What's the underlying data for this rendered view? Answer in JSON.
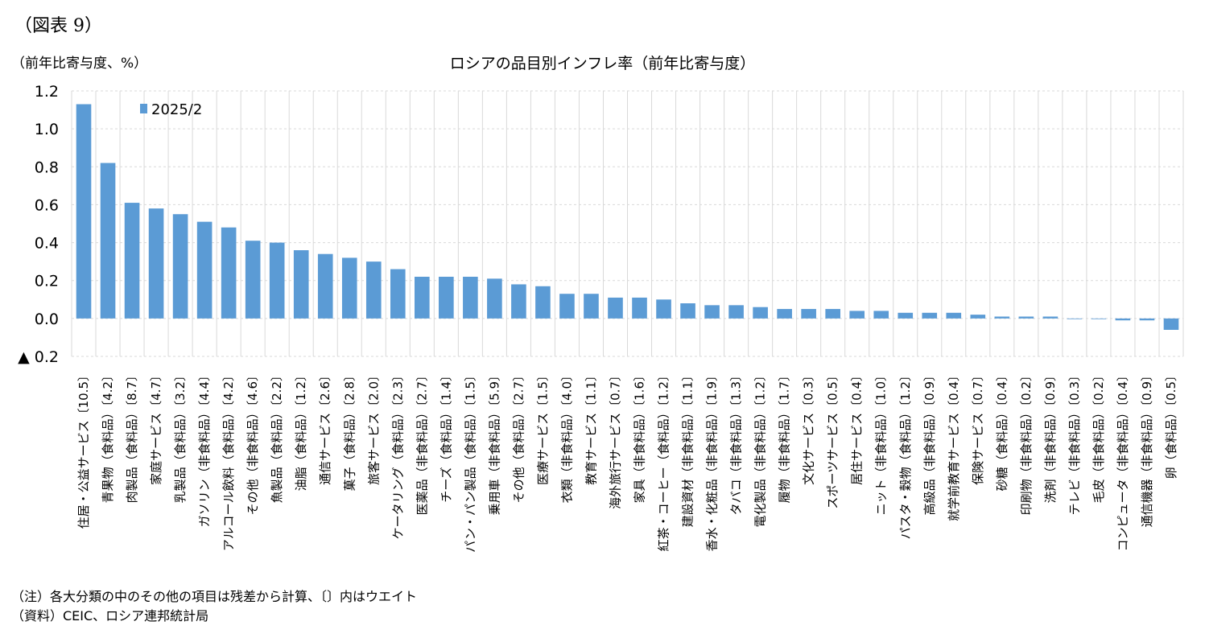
{
  "figure_label": "（図表 9）",
  "unit_label": "（前年比寄与度、%）",
  "notes": [
    "（注）各大分類の中のその他の項目は残差から計算、〔〕内はウエイト",
    "（資料）CEIC、ロシア連邦統計局"
  ],
  "colors": {
    "bar": "#5b9bd5",
    "grid": "#d9d9d9"
  },
  "chart_data": {
    "type": "bar",
    "title": "ロシアの品目別インフレ率（前年比寄与度）",
    "ylim": [
      -0.2,
      1.2
    ],
    "y_ticks": [
      1.2,
      1.0,
      0.8,
      0.6,
      0.4,
      0.2,
      0.0,
      -0.2
    ],
    "y_tick_labels": [
      "1.2",
      "1.0",
      "0.8",
      "0.6",
      "0.4",
      "0.2",
      "0.0",
      "▲ 0.2"
    ],
    "grid": true,
    "legend_position": "top-left",
    "categories": [
      "住居・公益サービス〔10.5〕",
      "青果物（食料品）〔4.2〕",
      "肉製品（食料品）〔8.7〕",
      "家庭サービス〔4.7〕",
      "乳製品（食料品）〔3.2〕",
      "ガソリン（非食料品）〔4.4〕",
      "アルコール飲料（食料品）〔4.2〕",
      "その他（非食料品）〔4.6〕",
      "魚製品（食料品）〔2.2〕",
      "油脂（食料品）〔1.2〕",
      "通信サービス〔2.6〕",
      "菓子（食料品）〔2.8〕",
      "旅客サービス〔2.0〕",
      "ケータリング（食料品）〔2.3〕",
      "医薬品（非食料品）〔2.7〕",
      "チーズ（食料品）〔1.4〕",
      "パン・パン製品（食料品）〔1.5〕",
      "乗用車（非食料品）〔5.9〕",
      "その他（食料品）〔2.7〕",
      "医療サービス〔1.5〕",
      "衣類（非食料品）〔4.0〕",
      "教育サービス〔1.1〕",
      "海外旅行サービス〔0.7〕",
      "家具（非食料品）〔1.6〕",
      "紅茶・コーヒー（食料品）〔1.2〕",
      "建設資材（非食料品）〔1.1〕",
      "香水・化粧品（非食料品）〔1.9〕",
      "タバコ（非食料品）〔1.3〕",
      "電化製品（非食料品）〔1.2〕",
      "履物（非食料品）〔1.7〕",
      "文化サービス〔0.3〕",
      "スポーツサービス〔0.5〕",
      "居住サービス〔0.4〕",
      "ニット（非食料品）〔1.0〕",
      "パスタ・穀物（食料品）〔1.2〕",
      "高級品（非食料品）〔0.9〕",
      "就学前教育サービス〔0.4〕",
      "保険サービス〔0.7〕",
      "砂糖（食料品）〔0.4〕",
      "印刷物（非食料品）〔0.2〕",
      "洗剤（非食料品）〔0.9〕",
      "テレビ（非食料品）〔0.3〕",
      "毛皮（非食料品）〔0.2〕",
      "コンピュータ（非食料品）〔0.4〕",
      "通信機器（非食料品）〔0.9〕",
      "卵（食料品）〔0.5〕"
    ],
    "series": [
      {
        "name": "2025/2",
        "values": [
          1.13,
          0.82,
          0.61,
          0.58,
          0.55,
          0.51,
          0.48,
          0.41,
          0.4,
          0.36,
          0.34,
          0.32,
          0.3,
          0.26,
          0.22,
          0.22,
          0.22,
          0.21,
          0.18,
          0.17,
          0.13,
          0.13,
          0.11,
          0.11,
          0.1,
          0.08,
          0.07,
          0.07,
          0.06,
          0.05,
          0.05,
          0.05,
          0.04,
          0.04,
          0.03,
          0.03,
          0.03,
          0.02,
          0.01,
          0.01,
          0.01,
          0.0,
          0.0,
          -0.01,
          -0.01,
          -0.06
        ]
      }
    ]
  }
}
